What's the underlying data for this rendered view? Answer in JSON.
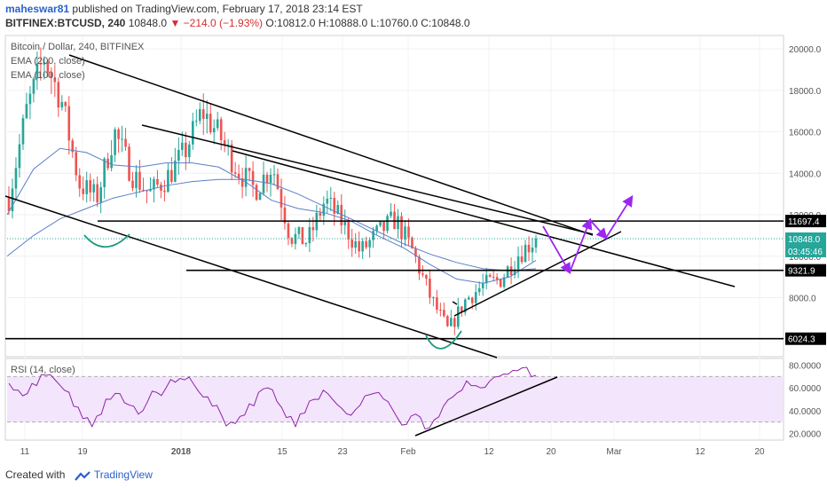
{
  "header": {
    "username": "maheswar81",
    "published": "published on TradingView.com, February 17, 2018 23:14 EST",
    "symbol": "BITFINEX:BTCUSD, 240",
    "last": "10848.0",
    "change": "▼ −214.0 (−1.93%)",
    "ohlc": "O:10812.0  H:10888.0  L:10760.0  C:10848.0"
  },
  "footer": {
    "created_with": "Created with",
    "brand": "TradingView"
  },
  "colors": {
    "up": "#26a69a",
    "down": "#ef5350",
    "ema": "#5b7fc7",
    "trendline": "#000000",
    "arrow": "#9c27f0",
    "rsi": "#8e24aa",
    "rsi_band": "#f3e5fb",
    "last_price": "#26a69a"
  },
  "chart_data": [
    {
      "type": "candlestick",
      "title": "Bitcoin / Dollar, 240, BITFINEX",
      "legend": [
        "EMA (200, close)",
        "EMA (100, close)"
      ],
      "y_ticks": [
        8000,
        10000,
        12000,
        14000,
        16000,
        18000,
        20000
      ],
      "y_tick_labels": [
        "8000.0",
        "10000.0",
        "12000.0",
        "14000.0",
        "16000.0",
        "18000.0",
        "20000.0"
      ],
      "ylim": [
        5200,
        20600
      ],
      "x_tick_labels": [
        "11",
        "19",
        "2018",
        "15",
        "23",
        "Feb",
        "12",
        "20",
        "Mar",
        "12",
        "20"
      ],
      "price_labels": [
        "11697.4",
        "10848.0",
        "03:45:46",
        "9321.9",
        "6024.3"
      ],
      "horizontal_levels": [
        11697.4,
        9321.9,
        6024.3
      ],
      "last_price": 10848.0,
      "series": [
        {
          "name": "EMA (200, close)",
          "values": [
            10000,
            11000,
            11800,
            12300,
            12800,
            13100,
            13400,
            13600,
            13700,
            13700,
            13500,
            13000,
            12400,
            11800,
            11200,
            10600,
            10100,
            9700,
            9400,
            9300,
            9400
          ]
        },
        {
          "name": "EMA (100, close)",
          "values": [
            12000,
            14200,
            15200,
            15000,
            14400,
            14300,
            14500,
            14500,
            14300,
            13600,
            12700,
            12300,
            12100,
            11700,
            11000,
            10400,
            9600,
            8900,
            8700,
            9000,
            9800
          ]
        }
      ],
      "close_path": [
        12800,
        17000,
        19600,
        17500,
        13500,
        12800,
        16000,
        14000,
        13000,
        13800,
        15000,
        17000,
        15800,
        14200,
        13200,
        14400,
        11000,
        10700,
        12700,
        11600,
        10200,
        11100,
        11800,
        10200,
        8000,
        6400,
        7900,
        8600,
        8900,
        10100,
        10848
      ]
    },
    {
      "type": "line",
      "title": "RSI (14, close)",
      "y_ticks": [
        20,
        40,
        60,
        80
      ],
      "y_tick_labels": [
        "20.0000",
        "40.0000",
        "60.0000",
        "80.0000"
      ],
      "ylim": [
        15,
        85
      ],
      "band": [
        30,
        70
      ],
      "values": [
        64,
        58,
        55,
        62,
        71,
        67,
        58,
        44,
        33,
        26,
        37,
        50,
        55,
        45,
        37,
        48,
        56,
        60,
        65,
        67,
        63,
        52,
        44,
        36,
        30,
        35,
        46,
        56,
        60,
        48,
        34,
        26,
        38,
        50,
        58,
        50,
        42,
        36,
        45,
        54,
        56,
        48,
        34,
        28,
        37,
        24,
        32,
        44,
        52,
        58,
        62,
        60,
        66,
        70,
        72,
        75,
        78,
        71
      ]
    }
  ]
}
